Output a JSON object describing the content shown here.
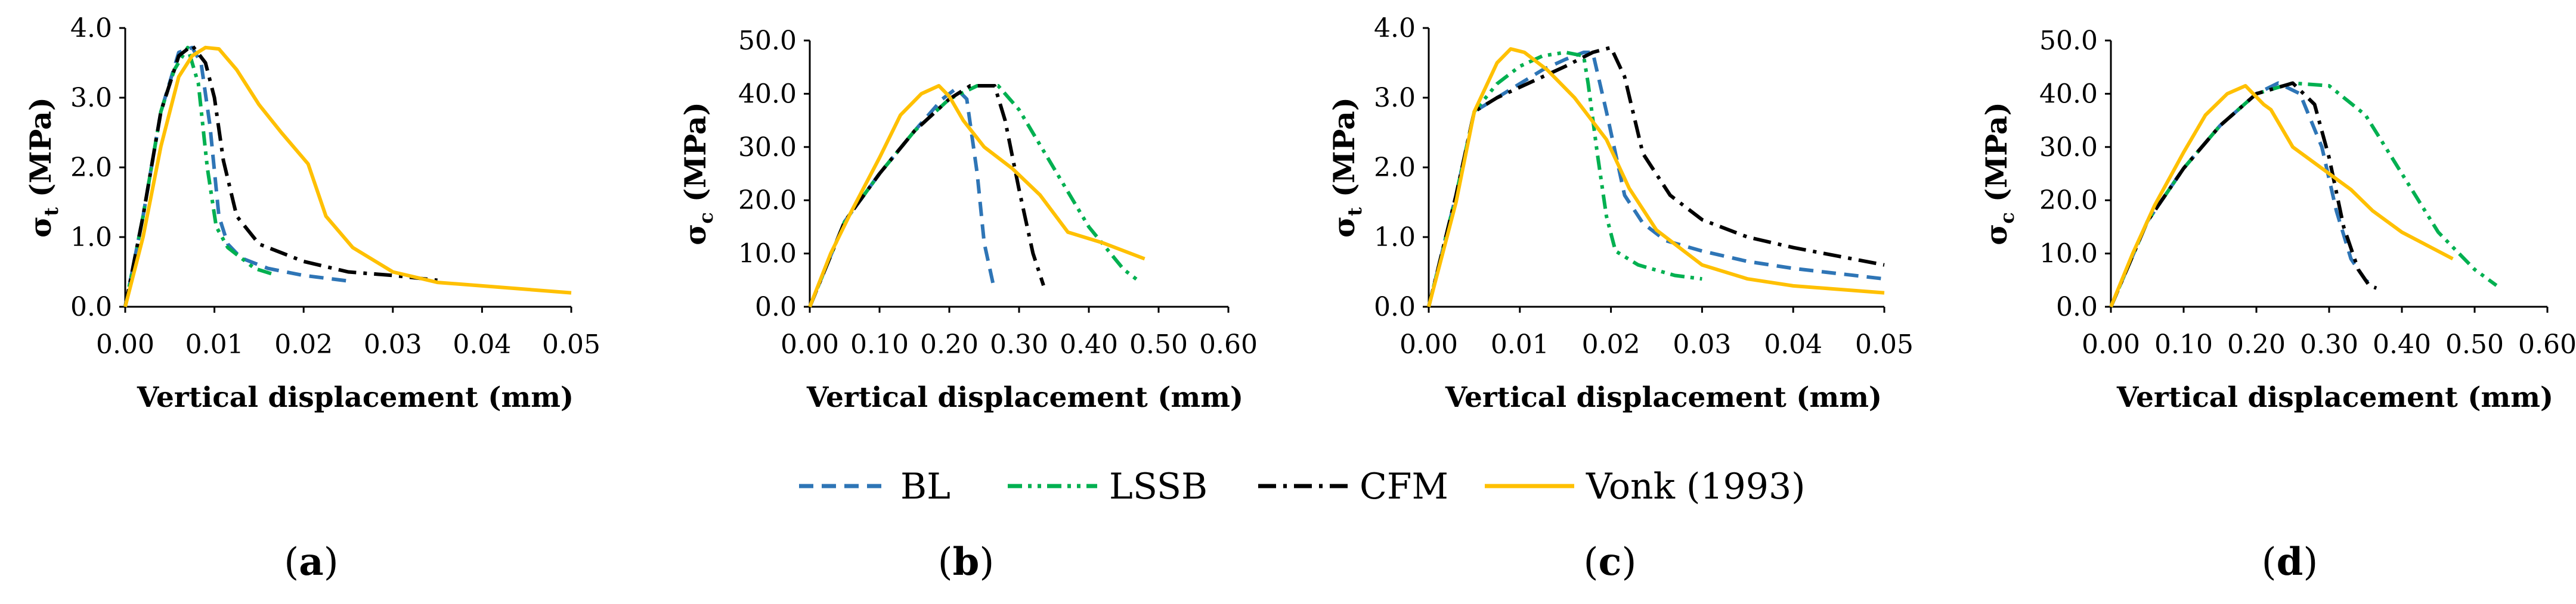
{
  "legend": {
    "items": [
      {
        "label": "BL",
        "color": "#2E75B6",
        "style": "dashed"
      },
      {
        "label": "LSSB",
        "color": "#00B050",
        "style": "dashdotdot"
      },
      {
        "label": "CFM",
        "color": "#000000",
        "style": "dashdot"
      },
      {
        "label": "Vonk (1993)",
        "color": "#FFC000",
        "style": "solid"
      }
    ]
  },
  "chart_data": [
    {
      "id": "a",
      "type": "line",
      "caption": "a",
      "ylabel_main": "σ",
      "ylabel_sub": "t",
      "ylabel_unit": " (MPa)",
      "xlabel": "Vertical displacement (mm)",
      "xlim": [
        0,
        0.05
      ],
      "ylim": [
        0,
        4
      ],
      "xticks": [
        "0.00",
        "0.01",
        "0.02",
        "0.03",
        "0.04",
        "0.05"
      ],
      "xtick_values": [
        0,
        0.01,
        0.02,
        0.03,
        0.04,
        0.05
      ],
      "yticks": [
        "0.0",
        "1.0",
        "2.0",
        "3.0",
        "4.0"
      ],
      "ytick_values": [
        0,
        1,
        2,
        3,
        4
      ],
      "series": [
        {
          "name": "BL",
          "x": [
            0,
            0.002,
            0.004,
            0.006,
            0.0075,
            0.0085,
            0.0095,
            0.0105,
            0.0115,
            0.013,
            0.016,
            0.02,
            0.025
          ],
          "y": [
            0,
            1.3,
            2.8,
            3.65,
            3.72,
            3.5,
            2.6,
            1.3,
            0.9,
            0.7,
            0.55,
            0.45,
            0.37
          ]
        },
        {
          "name": "LSSB",
          "x": [
            0,
            0.002,
            0.004,
            0.0055,
            0.007,
            0.0082,
            0.0092,
            0.0102,
            0.0115,
            0.0145,
            0.017
          ],
          "y": [
            0,
            1.3,
            2.8,
            3.4,
            3.72,
            3.2,
            2.0,
            1.15,
            0.85,
            0.55,
            0.45
          ]
        },
        {
          "name": "CFM",
          "x": [
            0,
            0.002,
            0.004,
            0.006,
            0.0075,
            0.009,
            0.01,
            0.011,
            0.0125,
            0.015,
            0.02,
            0.025,
            0.03,
            0.035
          ],
          "y": [
            0,
            1.3,
            2.8,
            3.6,
            3.75,
            3.5,
            3.0,
            2.1,
            1.3,
            0.9,
            0.65,
            0.5,
            0.45,
            0.38
          ]
        },
        {
          "name": "Vonk (1993)",
          "x": [
            0,
            0.002,
            0.004,
            0.006,
            0.0075,
            0.009,
            0.0105,
            0.0125,
            0.015,
            0.0175,
            0.0205,
            0.0225,
            0.0255,
            0.03,
            0.035,
            0.04,
            0.05
          ],
          "y": [
            0,
            1.0,
            2.3,
            3.3,
            3.6,
            3.72,
            3.7,
            3.4,
            2.9,
            2.5,
            2.05,
            1.3,
            0.85,
            0.5,
            0.35,
            0.3,
            0.2
          ]
        }
      ]
    },
    {
      "id": "b",
      "type": "line",
      "caption": "b",
      "ylabel_main": "σ",
      "ylabel_sub": "c",
      "ylabel_unit": " (MPa)",
      "xlabel": "Vertical displacement (mm)",
      "xlim": [
        0,
        0.6
      ],
      "ylim": [
        0,
        50
      ],
      "xticks": [
        "0.00",
        "0.10",
        "0.20",
        "0.30",
        "0.40",
        "0.50",
        "0.60"
      ],
      "xtick_values": [
        0,
        0.1,
        0.2,
        0.3,
        0.4,
        0.5,
        0.6
      ],
      "yticks": [
        "0.0",
        "10.0",
        "20.0",
        "30.0",
        "40.0",
        "50.0"
      ],
      "ytick_values": [
        0,
        10,
        20,
        30,
        40,
        50
      ],
      "series": [
        {
          "name": "BL",
          "x": [
            0,
            0.05,
            0.1,
            0.15,
            0.19,
            0.21,
            0.225,
            0.24,
            0.25,
            0.265
          ],
          "y": [
            0,
            16,
            25,
            33,
            39,
            41,
            39,
            25,
            12,
            3
          ]
        },
        {
          "name": "LSSB",
          "x": [
            0,
            0.05,
            0.1,
            0.15,
            0.2,
            0.24,
            0.27,
            0.3,
            0.35,
            0.4,
            0.45,
            0.47
          ],
          "y": [
            0,
            16,
            25,
            33,
            39,
            41.5,
            41.5,
            37,
            26,
            15,
            7,
            5
          ]
        },
        {
          "name": "CFM",
          "x": [
            0,
            0.05,
            0.1,
            0.15,
            0.2,
            0.23,
            0.265,
            0.28,
            0.3,
            0.32,
            0.335
          ],
          "y": [
            0,
            16,
            25,
            33,
            39,
            41.5,
            41.5,
            35,
            22,
            10,
            4
          ]
        },
        {
          "name": "Vonk (1993)",
          "x": [
            0,
            0.03,
            0.06,
            0.1,
            0.13,
            0.16,
            0.185,
            0.2,
            0.22,
            0.25,
            0.29,
            0.33,
            0.37,
            0.42,
            0.48
          ],
          "y": [
            0,
            10,
            18,
            28,
            36,
            40,
            41.5,
            39.5,
            35,
            30,
            26,
            21,
            14,
            12,
            9
          ]
        }
      ]
    },
    {
      "id": "c",
      "type": "line",
      "caption": "c",
      "ylabel_main": "σ",
      "ylabel_sub": "t",
      "ylabel_unit": " (MPa)",
      "xlabel": "Vertical displacement (mm)",
      "xlim": [
        0,
        0.05
      ],
      "ylim": [
        0,
        4
      ],
      "xticks": [
        "0.00",
        "0.01",
        "0.02",
        "0.03",
        "0.04",
        "0.05"
      ],
      "xtick_values": [
        0,
        0.01,
        0.02,
        0.03,
        0.04,
        0.05
      ],
      "yticks": [
        "0.0",
        "1.0",
        "2.0",
        "3.0",
        "4.0"
      ],
      "ytick_values": [
        0,
        1,
        2,
        3,
        4
      ],
      "series": [
        {
          "name": "BL",
          "x": [
            0,
            0.003,
            0.005,
            0.0075,
            0.01,
            0.0125,
            0.015,
            0.017,
            0.018,
            0.0195,
            0.0215,
            0.0235,
            0.026,
            0.03,
            0.035,
            0.04,
            0.05
          ],
          "y": [
            0,
            1.6,
            2.8,
            3.0,
            3.2,
            3.4,
            3.55,
            3.65,
            3.65,
            2.8,
            1.6,
            1.2,
            0.95,
            0.8,
            0.65,
            0.55,
            0.4
          ]
        },
        {
          "name": "LSSB",
          "x": [
            0,
            0.003,
            0.005,
            0.0075,
            0.01,
            0.0125,
            0.015,
            0.017,
            0.0175,
            0.0185,
            0.0195,
            0.0205,
            0.023,
            0.027,
            0.03
          ],
          "y": [
            0,
            1.6,
            2.8,
            3.2,
            3.45,
            3.6,
            3.65,
            3.6,
            3.2,
            2.2,
            1.3,
            0.8,
            0.6,
            0.45,
            0.4
          ]
        },
        {
          "name": "CFM",
          "x": [
            0,
            0.003,
            0.005,
            0.0075,
            0.01,
            0.0125,
            0.015,
            0.018,
            0.02,
            0.0215,
            0.0235,
            0.0265,
            0.03,
            0.035,
            0.04,
            0.05
          ],
          "y": [
            0,
            1.6,
            2.8,
            3.0,
            3.15,
            3.3,
            3.45,
            3.65,
            3.72,
            3.3,
            2.2,
            1.6,
            1.25,
            1.0,
            0.85,
            0.6
          ]
        },
        {
          "name": "Vonk (1993)",
          "x": [
            0,
            0.003,
            0.005,
            0.0075,
            0.009,
            0.0105,
            0.013,
            0.016,
            0.0195,
            0.022,
            0.025,
            0.03,
            0.035,
            0.04,
            0.05
          ],
          "y": [
            0,
            1.5,
            2.8,
            3.5,
            3.7,
            3.65,
            3.4,
            3.0,
            2.4,
            1.7,
            1.1,
            0.6,
            0.4,
            0.3,
            0.2
          ]
        }
      ]
    },
    {
      "id": "d",
      "type": "line",
      "caption": "d",
      "ylabel_main": "σ",
      "ylabel_sub": "c",
      "ylabel_unit": " (MPa)",
      "xlabel": "Vertical displacement (mm)",
      "xlim": [
        0,
        0.6
      ],
      "ylim": [
        0,
        50
      ],
      "xticks": [
        "0.00",
        "0.10",
        "0.20",
        "0.30",
        "0.40",
        "0.50",
        "0.60"
      ],
      "xtick_values": [
        0,
        0.1,
        0.2,
        0.3,
        0.4,
        0.5,
        0.6
      ],
      "yticks": [
        "0.0",
        "10.0",
        "20.0",
        "30.0",
        "40.0",
        "50.0"
      ],
      "ytick_values": [
        0,
        10,
        20,
        30,
        40,
        50
      ],
      "series": [
        {
          "name": "BL",
          "x": [
            0,
            0.05,
            0.1,
            0.15,
            0.2,
            0.23,
            0.26,
            0.29,
            0.31,
            0.33,
            0.35,
            0.36
          ],
          "y": [
            0,
            16,
            26,
            34,
            40,
            42,
            40,
            30,
            18,
            9,
            5,
            4
          ]
        },
        {
          "name": "LSSB",
          "x": [
            0,
            0.05,
            0.1,
            0.15,
            0.2,
            0.25,
            0.3,
            0.35,
            0.4,
            0.45,
            0.5,
            0.53
          ],
          "y": [
            0,
            16,
            26,
            34,
            40,
            42,
            41.5,
            36,
            25,
            14,
            7,
            4
          ]
        },
        {
          "name": "CFM",
          "x": [
            0,
            0.05,
            0.1,
            0.15,
            0.2,
            0.25,
            0.28,
            0.3,
            0.32,
            0.34,
            0.355,
            0.365
          ],
          "y": [
            0,
            16,
            26,
            34,
            40,
            42,
            38,
            28,
            15,
            7,
            4,
            3.5
          ]
        },
        {
          "name": "Vonk (1993)",
          "x": [
            0,
            0.03,
            0.06,
            0.1,
            0.13,
            0.16,
            0.185,
            0.21,
            0.22,
            0.25,
            0.29,
            0.33,
            0.36,
            0.4,
            0.47
          ],
          "y": [
            0,
            10,
            19,
            29,
            36,
            40,
            41.5,
            38,
            37,
            30,
            26,
            22,
            18,
            14,
            9
          ]
        }
      ]
    }
  ]
}
